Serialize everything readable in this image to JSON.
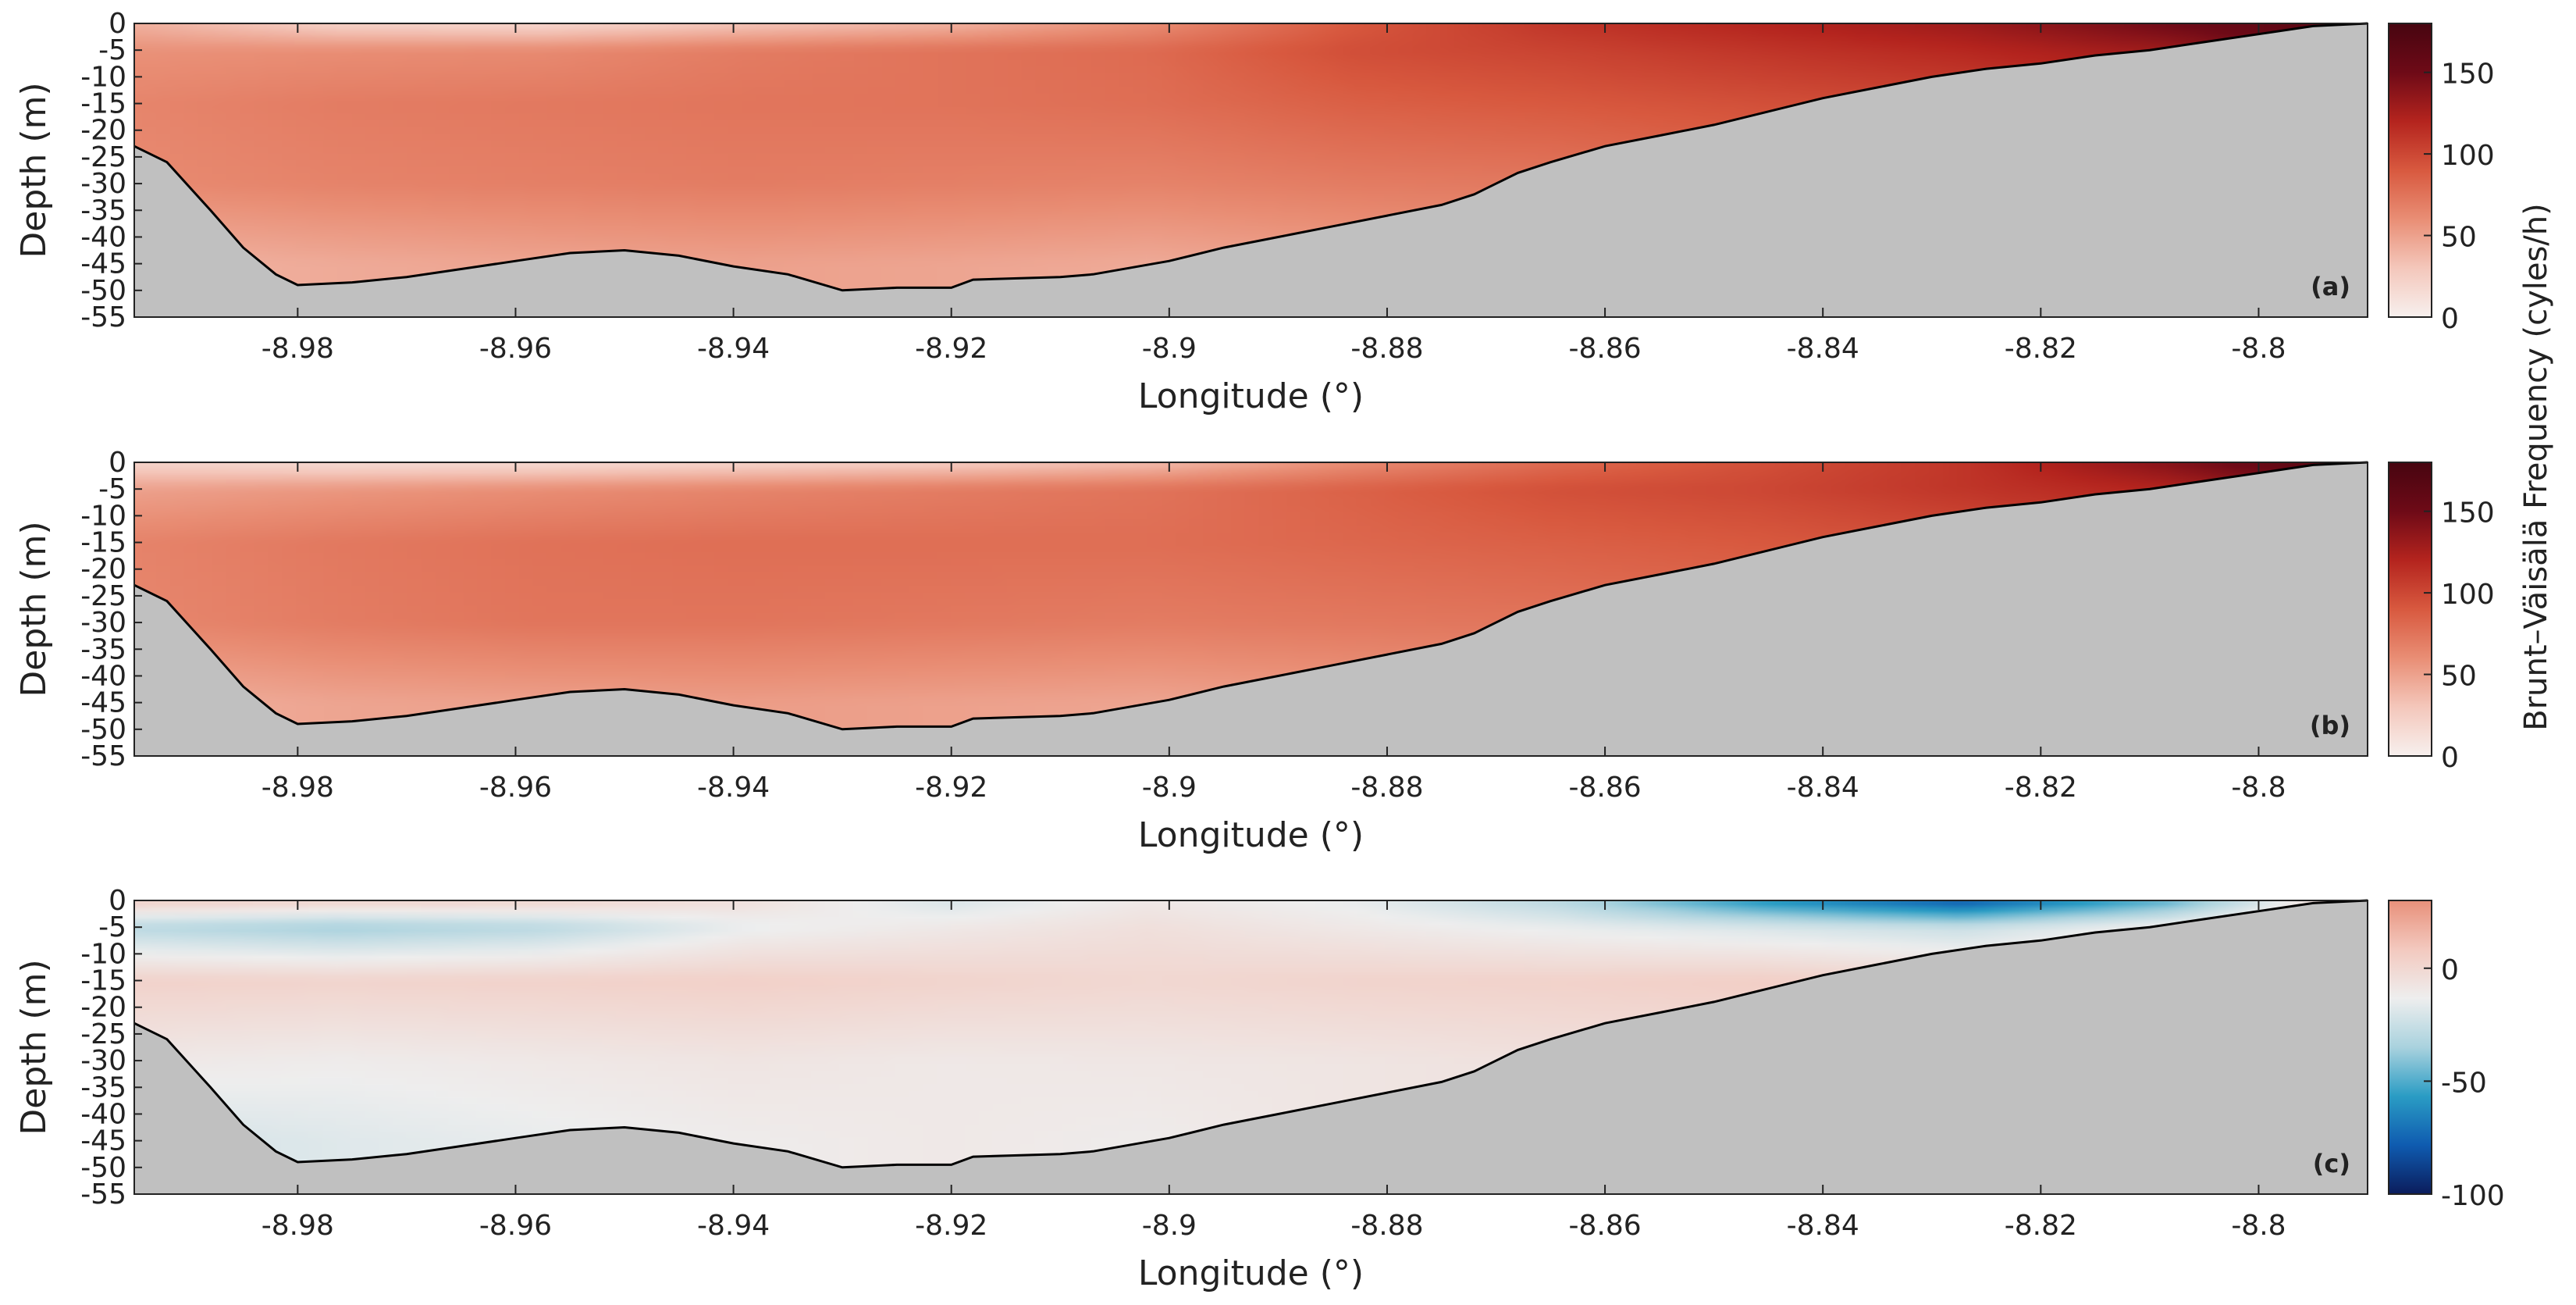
{
  "chart_data": [
    {
      "type": "heatmap",
      "panel_label": "(a)",
      "xlabel": "Longitude (°)",
      "ylabel": "Depth (m)",
      "xlim": [
        -8.995,
        -8.79
      ],
      "ylim": [
        -55,
        0
      ],
      "xticks": [
        -8.98,
        -8.96,
        -8.94,
        -8.92,
        -8.9,
        -8.88,
        -8.86,
        -8.84,
        -8.82,
        -8.8
      ],
      "xtick_labels": [
        "-8.98",
        "-8.96",
        "-8.94",
        "-8.92",
        "-8.9",
        "-8.88",
        "-8.86",
        "-8.84",
        "-8.82",
        "-8.8"
      ],
      "yticks": [
        0,
        -5,
        -10,
        -15,
        -20,
        -25,
        -30,
        -35,
        -40,
        -45,
        -50,
        -55
      ],
      "ytick_labels": [
        "0",
        "-5",
        "-10",
        "-15",
        "-20",
        "-25",
        "-30",
        "-35",
        "-40",
        "-45",
        "-50",
        "-55"
      ],
      "colorbar": {
        "range": [
          0,
          180
        ],
        "ticks": [
          0,
          50,
          100,
          150
        ],
        "tick_labels": [
          "0",
          "50",
          "100",
          "150"
        ],
        "colors": [
          "#f7f0ee",
          "#f4c7bb",
          "#e98e75",
          "#d8593f",
          "#b4241e",
          "#6e0a17",
          "#470510"
        ]
      },
      "field": {
        "levels": [
          {
            "depth": 0,
            "values": [
              42,
              22,
              18,
              30,
              40,
              60,
              90,
              110,
              120,
              130,
              150,
              170
            ]
          },
          {
            "depth": -5,
            "values": [
              58,
              60,
              62,
              70,
              75,
              80,
              96,
              102,
              110,
              118,
              130,
              160
            ]
          },
          {
            "depth": -15,
            "values": [
              65,
              70,
              72,
              74,
              75,
              78,
              86,
              90,
              95,
              100,
              110,
              130
            ]
          },
          {
            "depth": -30,
            "values": [
              62,
              66,
              68,
              70,
              68,
              66,
              70,
              72,
              78,
              85,
              95,
              110
            ]
          },
          {
            "depth": -45,
            "values": [
              40,
              45,
              48,
              50,
              48,
              45,
              50,
              55,
              60,
              70,
              80,
              100
            ]
          }
        ]
      }
    },
    {
      "type": "heatmap",
      "panel_label": "(b)",
      "xlabel": "Longitude (°)",
      "ylabel": "Depth (m)",
      "xlim": [
        -8.995,
        -8.79
      ],
      "ylim": [
        -55,
        0
      ],
      "xticks": [
        -8.98,
        -8.96,
        -8.94,
        -8.92,
        -8.9,
        -8.88,
        -8.86,
        -8.84,
        -8.82,
        -8.8
      ],
      "xtick_labels": [
        "-8.98",
        "-8.96",
        "-8.94",
        "-8.92",
        "-8.9",
        "-8.88",
        "-8.86",
        "-8.84",
        "-8.82",
        "-8.8"
      ],
      "yticks": [
        0,
        -5,
        -10,
        -15,
        -20,
        -25,
        -30,
        -35,
        -40,
        -45,
        -50,
        -55
      ],
      "ytick_labels": [
        "0",
        "-5",
        "-10",
        "-15",
        "-20",
        "-25",
        "-30",
        "-35",
        "-40",
        "-45",
        "-50",
        "-55"
      ],
      "colorbar": {
        "range": [
          0,
          180
        ],
        "ticks": [
          0,
          50,
          100,
          150
        ],
        "tick_labels": [
          "0",
          "50",
          "100",
          "150"
        ],
        "colors": [
          "#f7f0ee",
          "#f4c7bb",
          "#e98e75",
          "#d8593f",
          "#b4241e",
          "#6e0a17",
          "#470510"
        ]
      },
      "field": {
        "levels": [
          {
            "depth": 0,
            "values": [
              20,
              15,
              15,
              20,
              25,
              35,
              60,
              80,
              95,
              110,
              140,
              175
            ]
          },
          {
            "depth": -5,
            "values": [
              50,
              55,
              60,
              65,
              70,
              75,
              85,
              95,
              100,
              110,
              120,
              150
            ]
          },
          {
            "depth": -15,
            "values": [
              66,
              72,
              76,
              78,
              78,
              78,
              82,
              86,
              90,
              95,
              105,
              120
            ]
          },
          {
            "depth": -30,
            "values": [
              64,
              70,
              74,
              74,
              72,
              70,
              72,
              74,
              78,
              85,
              95,
              110
            ]
          },
          {
            "depth": -45,
            "values": [
              42,
              48,
              50,
              52,
              50,
              48,
              52,
              56,
              62,
              70,
              80,
              100
            ]
          }
        ]
      }
    },
    {
      "type": "heatmap",
      "panel_label": "(c)",
      "xlabel": "Longitude (°)",
      "ylabel": "Depth (m)",
      "xlim": [
        -8.995,
        -8.79
      ],
      "ylim": [
        -55,
        0
      ],
      "xticks": [
        -8.98,
        -8.96,
        -8.94,
        -8.92,
        -8.9,
        -8.88,
        -8.86,
        -8.84,
        -8.82,
        -8.8
      ],
      "xtick_labels": [
        "-8.98",
        "-8.96",
        "-8.94",
        "-8.92",
        "-8.9",
        "-8.88",
        "-8.86",
        "-8.84",
        "-8.82",
        "-8.8"
      ],
      "yticks": [
        0,
        -5,
        -10,
        -15,
        -20,
        -25,
        -30,
        -35,
        -40,
        -45,
        -50,
        -55
      ],
      "ytick_labels": [
        "0",
        "-5",
        "-10",
        "-15",
        "-20",
        "-25",
        "-30",
        "-35",
        "-40",
        "-45",
        "-50",
        "-55"
      ],
      "colorbar": {
        "range": [
          -100,
          30
        ],
        "ticks": [
          0,
          -50,
          -100
        ],
        "tick_labels": [
          "0",
          "-50",
          "-100"
        ],
        "colors": [
          "#0b1d5c",
          "#0f5bb0",
          "#2a9cc4",
          "#a9d2de",
          "#eeeeee",
          "#f3c9bf",
          "#e8907a"
        ]
      },
      "field": {
        "levels": [
          {
            "depth": 0,
            "values": [
              5,
              3,
              2,
              -5,
              -20,
              -10,
              -15,
              -30,
              -60,
              -80,
              -50,
              10
            ]
          },
          {
            "depth": -5,
            "values": [
              -30,
              -35,
              -30,
              -15,
              -10,
              -5,
              -10,
              -15,
              -20,
              -25,
              -10,
              5
            ]
          },
          {
            "depth": -15,
            "values": [
              3,
              2,
              3,
              4,
              2,
              0,
              2,
              3,
              5,
              2,
              1,
              0
            ]
          },
          {
            "depth": -30,
            "values": [
              -10,
              -12,
              -10,
              -8,
              -10,
              -9,
              -8,
              -6,
              -5,
              -4,
              -3,
              -2
            ]
          },
          {
            "depth": -45,
            "values": [
              -22,
              -18,
              -15,
              -12,
              -10,
              -12,
              -8,
              -6,
              -5,
              -4,
              -3,
              -2
            ]
          }
        ]
      }
    }
  ],
  "bathymetry": {
    "lon": [
      -8.995,
      -8.992,
      -8.988,
      -8.985,
      -8.982,
      -8.98,
      -8.975,
      -8.97,
      -8.965,
      -8.96,
      -8.955,
      -8.95,
      -8.945,
      -8.94,
      -8.935,
      -8.93,
      -8.925,
      -8.92,
      -8.918,
      -8.91,
      -8.907,
      -8.9,
      -8.895,
      -8.89,
      -8.885,
      -8.88,
      -8.875,
      -8.872,
      -8.868,
      -8.865,
      -8.86,
      -8.855,
      -8.85,
      -8.845,
      -8.84,
      -8.835,
      -8.83,
      -8.825,
      -8.82,
      -8.815,
      -8.81,
      -8.805,
      -8.8,
      -8.795,
      -8.79
    ],
    "depth": [
      -23,
      -26,
      -35,
      -42,
      -47,
      -49,
      -48.5,
      -47.5,
      -46,
      -44.5,
      -43,
      -42.5,
      -43.5,
      -45.5,
      -47,
      -50,
      -49.5,
      -49.5,
      -48,
      -47.5,
      -47,
      -44.5,
      -42,
      -40,
      -38,
      -36,
      -34,
      -32,
      -28,
      -26,
      -23,
      -21,
      -19,
      -16.5,
      -14,
      -12,
      -10,
      -8.5,
      -7.5,
      -6,
      -5,
      -3.5,
      -2,
      -0.5,
      0
    ]
  },
  "colorbar_title": "Brunt–Väisälä Frequency (cyles/h)",
  "colors": {
    "land": "#c0c0c0",
    "axis": "#222222",
    "background": "#ffffff"
  }
}
